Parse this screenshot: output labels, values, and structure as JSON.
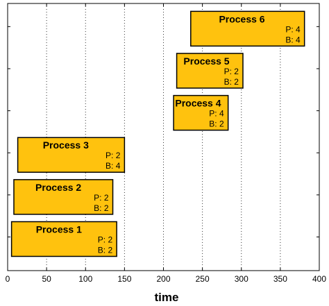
{
  "chart_data": {
    "type": "bar",
    "xlabel": "time",
    "xlim": [
      0,
      400
    ],
    "xticks": [
      0,
      50,
      100,
      150,
      200,
      250,
      300,
      350,
      400
    ],
    "grid": "vertical-dotted",
    "bar_color": "#FFC20E",
    "processes": [
      {
        "name": "Process 1",
        "start": 5,
        "end": 140,
        "p_label": "P: 2",
        "b_label": "B: 2"
      },
      {
        "name": "Process 2",
        "start": 8,
        "end": 135,
        "p_label": "P: 2",
        "b_label": "B: 2"
      },
      {
        "name": "Process 3",
        "start": 13,
        "end": 150,
        "p_label": "P: 2",
        "b_label": "B: 4"
      },
      {
        "name": "Process 4",
        "start": 213,
        "end": 283,
        "p_label": "P: 4",
        "b_label": "B: 2"
      },
      {
        "name": "Process 5",
        "start": 217,
        "end": 302,
        "p_label": "P: 2",
        "b_label": "B: 2"
      },
      {
        "name": "Process 6",
        "start": 235,
        "end": 381,
        "p_label": "P: 4",
        "b_label": "B: 4"
      }
    ]
  }
}
